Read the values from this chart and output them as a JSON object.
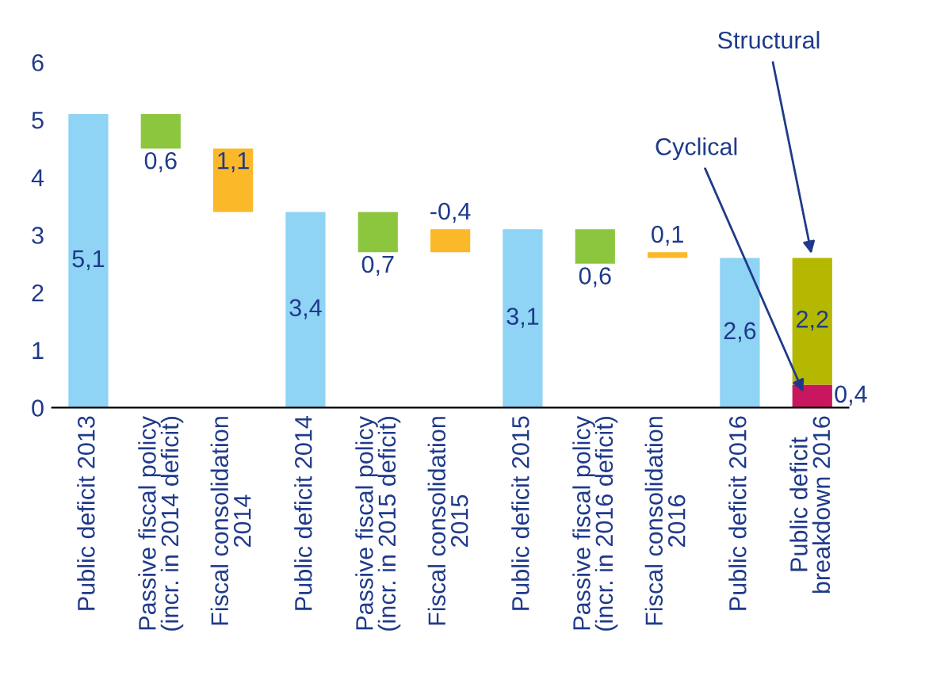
{
  "chart_data": {
    "type": "bar",
    "categories": [
      "Public deficit 2013",
      "Passive fiscal policy\n(incr. in 2014 deficit)",
      "Fiscal consolidation\n2014",
      "Public deficit 2014",
      "Passive fiscal policy\n(incr. in 2015 deficit)",
      "Fiscal consolidation\n2015",
      "Public deficit 2015",
      "Passive fiscal policy\n(incr. in 2016 deficit)",
      "Fiscal consolidation\n2016",
      "Public deficit 2016",
      "Public deficit\nbreakdown 2016"
    ],
    "series": [
      {
        "values": [
          5.1,
          0.6,
          1.1,
          3.4,
          0.7,
          -0.4,
          3.1,
          0.6,
          0.1,
          2.6,
          null
        ],
        "base": [
          0,
          4.5,
          3.4,
          0,
          2.7,
          3.1,
          0,
          2.5,
          2.6,
          0,
          null
        ],
        "colors": [
          "#8fd3f5",
          "#8cc63f",
          "#fbb829",
          "#8fd3f5",
          "#8cc63f",
          "#fbb829",
          "#8fd3f5",
          "#8cc63f",
          "#fbb829",
          "#8fd3f5",
          null
        ],
        "value_labels": [
          "5,1",
          "0,6",
          "1,1",
          "3,4",
          "0,7",
          "-0,4",
          "3,1",
          "0,6",
          "0,1",
          "2,6",
          null
        ]
      },
      {
        "name": "Cyclical",
        "color": "#c8175e",
        "values": [
          null,
          null,
          null,
          null,
          null,
          null,
          null,
          null,
          null,
          null,
          0.4
        ],
        "base": [
          null,
          null,
          null,
          null,
          null,
          null,
          null,
          null,
          null,
          null,
          0
        ],
        "value_labels": [
          null,
          null,
          null,
          null,
          null,
          null,
          null,
          null,
          null,
          null,
          "0,4"
        ]
      },
      {
        "name": "Structural",
        "color": "#b5b800",
        "values": [
          null,
          null,
          null,
          null,
          null,
          null,
          null,
          null,
          null,
          null,
          2.2
        ],
        "base": [
          null,
          null,
          null,
          null,
          null,
          null,
          null,
          null,
          null,
          null,
          0.4
        ],
        "value_labels": [
          null,
          null,
          null,
          null,
          null,
          null,
          null,
          null,
          null,
          null,
          "2,2"
        ]
      }
    ],
    "ylim": [
      0,
      6
    ],
    "yticks": [
      0,
      1,
      2,
      3,
      4,
      5,
      6
    ],
    "grid": false,
    "legend": false
  }
}
